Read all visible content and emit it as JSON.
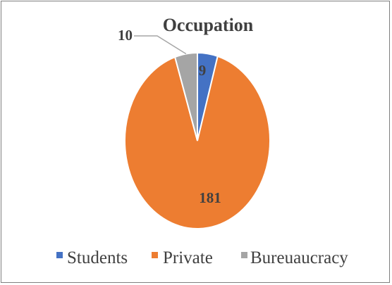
{
  "chart_data": {
    "type": "pie",
    "title": "Occupation",
    "categories": [
      "Students",
      "Private",
      "Bureuaucracy"
    ],
    "values": [
      9,
      181,
      10
    ],
    "data_labels": [
      "9",
      "181",
      "10"
    ],
    "colors": [
      "#4472c4",
      "#ed7d31",
      "#a5a5a5"
    ],
    "legend_position": "bottom",
    "start_angle_deg": 0,
    "direction": "clockwise"
  }
}
